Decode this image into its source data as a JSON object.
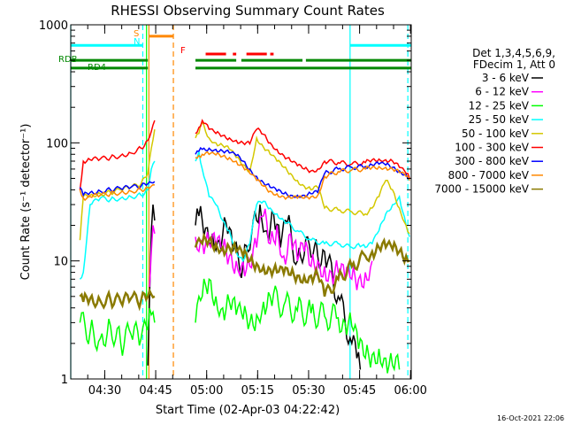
{
  "chart_data": {
    "type": "line",
    "title": "RHESSI Observing Summary Count Rates",
    "xlabel": "Start Time (02-Apr-03 04:22:42)",
    "ylabel": "Count Rate (s⁻¹ detector⁻¹)",
    "yscale": "log",
    "ylim": [
      1,
      1000
    ],
    "xlim_minutes": [
      -2.7,
      97.5
    ],
    "x_ticks": [
      {
        "label": "04:30",
        "value": 7.3
      },
      {
        "label": "04:45",
        "value": 22.3
      },
      {
        "label": "05:00",
        "value": 37.3
      },
      {
        "label": "05:15",
        "value": 52.3
      },
      {
        "label": "05:30",
        "value": 67.3
      },
      {
        "label": "05:45",
        "value": 82.3
      },
      {
        "label": "06:00",
        "value": 97.3
      }
    ],
    "y_ticks": [
      {
        "label": "1",
        "value": 1
      },
      {
        "label": "10",
        "value": 10
      },
      {
        "label": "100",
        "value": 100
      },
      {
        "label": "1000",
        "value": 1000
      }
    ],
    "legend_header": [
      "Det 1,3,4,5,6,9,",
      "FDecim 1, Att 0"
    ],
    "legend_position": "right",
    "series": [
      {
        "name": "3 - 6 keV",
        "color": "#000000",
        "x": [
          20,
          20.5,
          21,
          21.5,
          22,
          34,
          35,
          37,
          39,
          41,
          43,
          45,
          48,
          51,
          53,
          55,
          57,
          59,
          61,
          64,
          67,
          70,
          72,
          76,
          80,
          81.5,
          82.5
        ],
        "y": [
          1.3,
          5,
          18,
          30,
          22,
          20,
          24,
          19,
          17,
          15,
          21,
          12,
          9,
          22,
          30,
          18,
          25,
          13,
          21,
          10,
          16,
          11,
          12,
          5,
          2,
          1.5,
          1.2
        ]
      },
      {
        "name": "6 - 12 keV",
        "color": "#ff00ff",
        "x": [
          20.5,
          21,
          21.5,
          22,
          34,
          36,
          38,
          40,
          42,
          44,
          46,
          48,
          50,
          52,
          54,
          56,
          58,
          60,
          62,
          64,
          66,
          68,
          70,
          72,
          74,
          76,
          78,
          80,
          82,
          84,
          86
        ],
        "y": [
          6,
          12,
          20,
          17,
          16,
          15,
          14,
          13,
          12,
          11,
          10,
          10,
          9,
          13,
          24,
          14,
          20,
          11,
          17,
          10,
          12,
          9,
          10,
          9,
          8,
          8,
          7,
          7,
          7,
          8,
          10
        ]
      },
      {
        "name": "12 - 25 keV",
        "color": "#00ff00",
        "x": [
          0,
          3,
          6,
          9,
          12,
          15,
          18,
          20,
          21,
          22,
          34,
          36,
          38,
          40,
          42,
          44,
          46,
          48,
          50,
          52,
          54,
          56,
          60,
          64,
          68,
          72,
          76,
          78,
          80,
          82,
          84,
          86,
          88,
          90,
          92,
          94
        ],
        "y": [
          3,
          2.5,
          2.2,
          2.8,
          2,
          2.4,
          2.2,
          2.6,
          3.5,
          3,
          3,
          5,
          7,
          5,
          4,
          4.5,
          3.5,
          3.2,
          3,
          3.5,
          4.5,
          5,
          4.2,
          3.8,
          3.6,
          3.4,
          3.3,
          3,
          2.8,
          1.8,
          1.5,
          1.6,
          1.8,
          1.5,
          1.3,
          1.2
        ]
      },
      {
        "name": "25 - 50 keV",
        "color": "#00ffff",
        "x": [
          0,
          1,
          3,
          6,
          9,
          12,
          15,
          18,
          20,
          21,
          22,
          34,
          35,
          36,
          38,
          40,
          42,
          44,
          46,
          48,
          50,
          52,
          54,
          56,
          58,
          60,
          64,
          68,
          72,
          76,
          80,
          82,
          84,
          86,
          88,
          90,
          92,
          94,
          96,
          97
        ],
        "y": [
          7,
          8,
          30,
          34,
          33,
          34,
          35,
          36,
          40,
          60,
          70,
          70,
          85,
          60,
          35,
          30,
          22,
          18,
          12,
          10,
          14,
          30,
          32,
          28,
          25,
          22,
          18,
          15,
          14,
          14,
          13,
          14,
          13,
          14,
          18,
          25,
          30,
          35,
          20,
          16
        ]
      },
      {
        "name": "50 - 100 keV",
        "color": "#d4c800",
        "x": [
          0,
          1,
          3,
          6,
          9,
          12,
          15,
          18,
          20,
          21,
          22,
          34,
          35,
          36,
          38,
          40,
          42,
          44,
          46,
          48,
          50,
          52,
          54,
          56,
          58,
          60,
          62,
          64,
          66,
          68,
          70,
          72,
          76,
          80,
          84,
          86,
          88,
          90,
          92,
          94,
          96,
          97
        ],
        "y": [
          15,
          35,
          36,
          37,
          38,
          40,
          42,
          45,
          55,
          90,
          130,
          110,
          120,
          150,
          110,
          100,
          95,
          88,
          75,
          65,
          58,
          110,
          92,
          80,
          70,
          62,
          55,
          48,
          43,
          40,
          42,
          28,
          27,
          26,
          25,
          28,
          35,
          48,
          40,
          28,
          20,
          17
        ]
      },
      {
        "name": "100 - 300 keV",
        "color": "#ff0000",
        "x": [
          0,
          1,
          3,
          6,
          9,
          12,
          15,
          18,
          20,
          21,
          22,
          34,
          35,
          36,
          38,
          40,
          42,
          44,
          46,
          48,
          50,
          52,
          54,
          56,
          58,
          60,
          62,
          64,
          66,
          68,
          70,
          72,
          76,
          80,
          84,
          86,
          88,
          90,
          92,
          94,
          96,
          97
        ],
        "y": [
          40,
          70,
          72,
          73,
          75,
          78,
          82,
          90,
          105,
          125,
          155,
          120,
          135,
          155,
          130,
          120,
          115,
          110,
          105,
          100,
          98,
          130,
          118,
          100,
          88,
          78,
          70,
          64,
          60,
          58,
          60,
          70,
          68,
          66,
          68,
          72,
          73,
          72,
          70,
          62,
          55,
          50
        ]
      },
      {
        "name": "300 - 800 keV",
        "color": "#0000ff",
        "x": [
          0,
          1,
          3,
          6,
          9,
          12,
          15,
          18,
          20,
          21,
          22,
          34,
          35,
          36,
          38,
          40,
          42,
          44,
          46,
          48,
          50,
          52,
          54,
          56,
          58,
          60,
          62,
          64,
          66,
          68,
          70,
          72,
          76,
          80,
          84,
          86,
          88,
          90,
          92,
          94,
          96,
          97
        ],
        "y": [
          42,
          36,
          38,
          39,
          40,
          41,
          42,
          43,
          45,
          46,
          47,
          80,
          85,
          88,
          90,
          88,
          85,
          82,
          78,
          70,
          60,
          52,
          46,
          42,
          39,
          37,
          36,
          36,
          36,
          37,
          38,
          55,
          60,
          62,
          63,
          65,
          66,
          65,
          62,
          58,
          54,
          50
        ]
      },
      {
        "name": "800 - 7000 keV",
        "color": "#ff8800",
        "x": [
          0,
          1,
          3,
          6,
          9,
          12,
          15,
          18,
          20,
          21,
          22,
          34,
          35,
          36,
          38,
          40,
          42,
          44,
          46,
          48,
          50,
          52,
          54,
          56,
          58,
          60,
          62,
          64,
          66,
          68,
          70,
          72,
          76,
          80,
          84,
          86,
          88,
          90,
          92,
          94,
          96,
          97
        ],
        "y": [
          40,
          34,
          35,
          36,
          37,
          38,
          39,
          40,
          42,
          43,
          44,
          75,
          78,
          80,
          80,
          79,
          77,
          75,
          70,
          63,
          55,
          48,
          43,
          39,
          37,
          35,
          34,
          34,
          34,
          35,
          36,
          52,
          57,
          59,
          60,
          62,
          63,
          62,
          60,
          56,
          52,
          48
        ]
      },
      {
        "name": "7000 - 15000 keV",
        "color": "#8a7a00",
        "x": [
          0,
          1,
          3,
          6,
          9,
          12,
          15,
          18,
          20,
          21,
          22,
          34,
          36,
          38,
          40,
          42,
          44,
          46,
          48,
          50,
          52,
          54,
          56,
          58,
          60,
          62,
          64,
          66,
          68,
          70,
          72,
          76,
          80,
          84,
          86,
          88,
          90,
          92,
          94,
          96,
          97
        ],
        "y": [
          5,
          4.5,
          4.8,
          4.6,
          4.7,
          4.5,
          4.8,
          4.6,
          5,
          5.2,
          5,
          13,
          14,
          15,
          14,
          13,
          13,
          12,
          11,
          10,
          9.5,
          9,
          8.5,
          8,
          7.8,
          7.6,
          7.5,
          7.4,
          7.5,
          7.6,
          5,
          7,
          9,
          11,
          12,
          13,
          13,
          12.5,
          12,
          11,
          10
        ]
      }
    ],
    "state_bars": [
      {
        "label": "RDB",
        "color": "#008800",
        "y_value": 500,
        "segments": [
          [
            -2.7,
            20
          ],
          [
            34,
            46
          ],
          [
            47.5,
            65.5
          ],
          [
            66.5,
            97.5
          ]
        ]
      },
      {
        "label": "RD4",
        "color": "#008800",
        "y_value": 430,
        "segments": [
          [
            -2.7,
            20
          ],
          [
            34,
            97.5
          ]
        ]
      },
      {
        "label": "",
        "color": "#00ffff",
        "y_value": 670,
        "segments": [
          [
            -2.7,
            18.5
          ],
          [
            79.5,
            97.5
          ]
        ]
      },
      {
        "label": "",
        "color": "#ff8800",
        "y_value": 800,
        "segments": [
          [
            20.3,
            27.5
          ]
        ]
      },
      {
        "label": "F",
        "color": "#ff0000",
        "y_value": 565,
        "segments": [
          [
            37,
            43
          ],
          [
            45,
            46
          ],
          [
            49,
            55
          ],
          [
            56,
            57
          ]
        ]
      }
    ],
    "flags": [
      {
        "label": "S",
        "color": "#ff8800"
      },
      {
        "label": "N",
        "color": "#00ffff"
      }
    ],
    "vertical_markers": [
      {
        "x": -2.7,
        "color": "#00ffff",
        "style": "solid"
      },
      {
        "x": 18.5,
        "color": "#00ffff",
        "style": "dashed"
      },
      {
        "x": 19.6,
        "color": "#00ff00",
        "style": "solid"
      },
      {
        "x": 20.3,
        "color": "#ff8800",
        "style": "solid"
      },
      {
        "x": 27.5,
        "color": "#ff8800",
        "style": "dashed"
      },
      {
        "x": 79.5,
        "color": "#00ffff",
        "style": "solid"
      },
      {
        "x": 96.5,
        "color": "#00ffff",
        "style": "dashed"
      }
    ],
    "grid": false
  },
  "timestamp": "16-Oct-2021 22:06"
}
